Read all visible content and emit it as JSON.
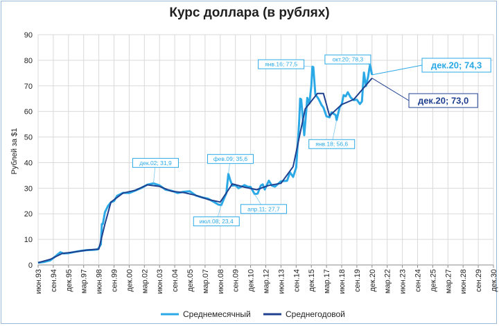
{
  "chart_data": {
    "type": "line",
    "title": "Курс доллара (в рублях)",
    "ylabel": "Рублей за $1",
    "xlabel": "",
    "ylim": [
      0,
      90
    ],
    "yticks": [
      0,
      10,
      20,
      30,
      40,
      50,
      60,
      70,
      80,
      90
    ],
    "grid": true,
    "legend_position": "bottom",
    "x_range": [
      "1993-06",
      "2030-12"
    ],
    "x_tick_labels": [
      "июн.93",
      "сен.94",
      "дек.95",
      "мар.97",
      "июн.98",
      "сен.99",
      "дек.00",
      "мар.02",
      "июн.03",
      "сен.04",
      "дек.05",
      "мар.07",
      "июн.08",
      "сен.09",
      "дек.10",
      "мар.12",
      "июн.13",
      "сен.14",
      "дек.15",
      "мар.17",
      "июн.18",
      "сен.19",
      "дек.20",
      "мар.22",
      "июн.23",
      "сен.24",
      "дек.25",
      "мар.27",
      "июн.28",
      "сен.29",
      "дек.30"
    ],
    "series": [
      {
        "name": "Среднемесячный",
        "color": "#2aa9e6",
        "points": [
          [
            "1993-06",
            0.9
          ],
          [
            "1993-12",
            1.2
          ],
          [
            "1994-06",
            1.8
          ],
          [
            "1994-10",
            3.0
          ],
          [
            "1995-01",
            4.0
          ],
          [
            "1995-04",
            5.0
          ],
          [
            "1995-07",
            4.5
          ],
          [
            "1995-12",
            4.6
          ],
          [
            "1996-06",
            5.1
          ],
          [
            "1996-12",
            5.5
          ],
          [
            "1997-06",
            5.8
          ],
          [
            "1997-12",
            5.9
          ],
          [
            "1998-05",
            6.1
          ],
          [
            "1998-08",
            8.0
          ],
          [
            "1998-09",
            16.0
          ],
          [
            "1998-10",
            16.0
          ],
          [
            "1998-12",
            20.6
          ],
          [
            "1999-03",
            23.0
          ],
          [
            "1999-06",
            24.5
          ],
          [
            "1999-09",
            25.0
          ],
          [
            "1999-12",
            27.0
          ],
          [
            "2000-06",
            28.2
          ],
          [
            "2000-12",
            28.1
          ],
          [
            "2001-06",
            29.1
          ],
          [
            "2001-12",
            30.1
          ],
          [
            "2002-06",
            31.4
          ],
          [
            "2002-12",
            31.9
          ],
          [
            "2003-06",
            31.1
          ],
          [
            "2003-12",
            29.4
          ],
          [
            "2004-06",
            29.0
          ],
          [
            "2004-12",
            28.1
          ],
          [
            "2005-06",
            28.6
          ],
          [
            "2005-12",
            28.8
          ],
          [
            "2006-06",
            27.1
          ],
          [
            "2006-12",
            26.4
          ],
          [
            "2007-06",
            25.9
          ],
          [
            "2007-12",
            24.6
          ],
          [
            "2008-04",
            23.6
          ],
          [
            "2008-07",
            23.4
          ],
          [
            "2008-10",
            26.2
          ],
          [
            "2008-12",
            28.0
          ],
          [
            "2009-02",
            35.6
          ],
          [
            "2009-04",
            33.0
          ],
          [
            "2009-06",
            31.0
          ],
          [
            "2009-09",
            31.2
          ],
          [
            "2009-12",
            30.0
          ],
          [
            "2010-06",
            31.2
          ],
          [
            "2010-09",
            30.6
          ],
          [
            "2010-12",
            30.5
          ],
          [
            "2011-04",
            27.7
          ],
          [
            "2011-07",
            27.9
          ],
          [
            "2011-10",
            31.0
          ],
          [
            "2011-12",
            31.5
          ],
          [
            "2012-02",
            29.5
          ],
          [
            "2012-06",
            32.9
          ],
          [
            "2012-09",
            31.0
          ],
          [
            "2012-12",
            30.6
          ],
          [
            "2013-06",
            32.7
          ],
          [
            "2013-12",
            32.9
          ],
          [
            "2014-03",
            36.2
          ],
          [
            "2014-06",
            34.4
          ],
          [
            "2014-09",
            38.0
          ],
          [
            "2014-12",
            56.0
          ],
          [
            "2015-01",
            65.0
          ],
          [
            "2015-02",
            64.7
          ],
          [
            "2015-05",
            50.7
          ],
          [
            "2015-08",
            65.3
          ],
          [
            "2015-10",
            63.0
          ],
          [
            "2015-12",
            69.9
          ],
          [
            "2016-01",
            77.5
          ],
          [
            "2016-02",
            77.3
          ],
          [
            "2016-04",
            66.7
          ],
          [
            "2016-07",
            65.0
          ],
          [
            "2016-10",
            62.6
          ],
          [
            "2016-12",
            61.5
          ],
          [
            "2017-03",
            58.1
          ],
          [
            "2017-06",
            57.7
          ],
          [
            "2017-08",
            59.6
          ],
          [
            "2017-12",
            58.6
          ],
          [
            "2018-01",
            56.6
          ],
          [
            "2018-04",
            61.7
          ],
          [
            "2018-06",
            62.7
          ],
          [
            "2018-08",
            66.4
          ],
          [
            "2018-10",
            65.9
          ],
          [
            "2018-12",
            67.5
          ],
          [
            "2019-03",
            65.4
          ],
          [
            "2019-06",
            64.4
          ],
          [
            "2019-09",
            64.6
          ],
          [
            "2019-12",
            62.9
          ],
          [
            "2020-02",
            63.9
          ],
          [
            "2020-04",
            75.2
          ],
          [
            "2020-06",
            69.9
          ],
          [
            "2020-08",
            73.4
          ],
          [
            "2020-10",
            78.3
          ],
          [
            "2020-12",
            74.3
          ]
        ]
      },
      {
        "name": "Среднегодовой",
        "color": "#1f3f8f",
        "points": [
          [
            "1993-06",
            0.9
          ],
          [
            "1994-06",
            2.2
          ],
          [
            "1995-06",
            4.5
          ],
          [
            "1996-06",
            5.1
          ],
          [
            "1997-06",
            5.8
          ],
          [
            "1998-06",
            6.2
          ],
          [
            "1998-12",
            16.0
          ],
          [
            "1999-06",
            24.6
          ],
          [
            "2000-06",
            28.1
          ],
          [
            "2001-06",
            29.2
          ],
          [
            "2002-06",
            31.3
          ],
          [
            "2003-06",
            30.7
          ],
          [
            "2004-06",
            28.8
          ],
          [
            "2005-06",
            28.3
          ],
          [
            "2006-06",
            27.2
          ],
          [
            "2007-06",
            25.6
          ],
          [
            "2008-06",
            24.6
          ],
          [
            "2009-06",
            31.7
          ],
          [
            "2010-06",
            30.4
          ],
          [
            "2011-06",
            29.4
          ],
          [
            "2012-06",
            31.1
          ],
          [
            "2013-06",
            31.9
          ],
          [
            "2014-06",
            38.4
          ],
          [
            "2015-06",
            61.0
          ],
          [
            "2016-06",
            67.0
          ],
          [
            "2016-12",
            67.0
          ],
          [
            "2017-06",
            58.3
          ],
          [
            "2018-06",
            62.7
          ],
          [
            "2019-06",
            64.7
          ],
          [
            "2020-12",
            73.0
          ]
        ]
      }
    ],
    "annotations": [
      {
        "label": "июн.93",
        "text": ""
      },
      {
        "date": "2002-12",
        "value": 31.9,
        "text": "дек.02; 31,9",
        "series": "Среднемесячный"
      },
      {
        "date": "2008-07",
        "value": 23.4,
        "text": "июл.08; 23,4",
        "series": "Среднемесячный"
      },
      {
        "date": "2009-02",
        "value": 35.6,
        "text": "фев.09; 35,6",
        "series": "Среднемесячный"
      },
      {
        "date": "2011-04",
        "value": 27.7,
        "text": "апр.11; 27,7",
        "series": "Среднемесячный"
      },
      {
        "date": "2016-01",
        "value": 77.5,
        "text": "янв.16; 77,5",
        "series": "Среднемесячный"
      },
      {
        "date": "2018-01",
        "value": 56.6,
        "text": "янв.18; 56,6",
        "series": "Среднемесячный"
      },
      {
        "date": "2020-10",
        "value": 78.3,
        "text": "окт.20; 78,3",
        "series": "Среднемесячный"
      },
      {
        "date": "2020-12",
        "value": 74.3,
        "text": "дек.20; 74,3",
        "series": "Среднемесячный"
      },
      {
        "date": "2020-12",
        "value": 73.0,
        "text": "дек.20; 73,0",
        "series": "Среднегодовой"
      }
    ]
  }
}
